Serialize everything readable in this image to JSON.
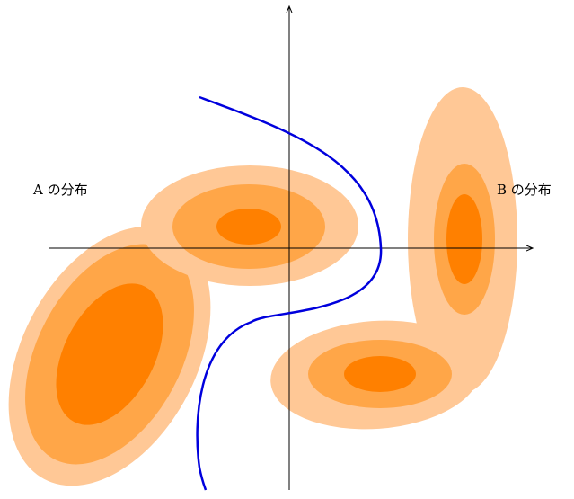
{
  "labels": {
    "a": "A の分布",
    "b": "B の分布"
  },
  "colors": {
    "outer": "#ffc896",
    "middle": "#ffa648",
    "inner": "#ff8000",
    "boundary": "#0000dd",
    "axis": "#000000"
  }
}
